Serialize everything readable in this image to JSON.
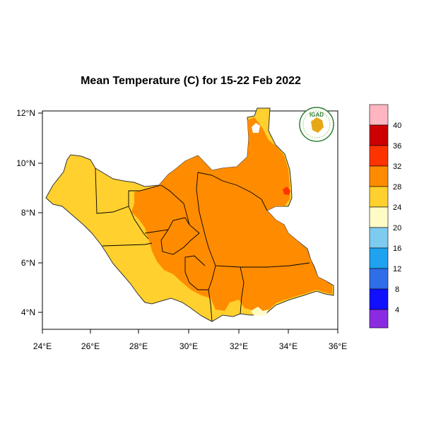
{
  "map": {
    "title": "Mean Temperature (C) for 15-22 Feb 2022",
    "region": "South Sudan",
    "logo_text": "IGAD",
    "x_ticks": [
      "24°E",
      "26°E",
      "28°E",
      "30°E",
      "32°E",
      "34°E",
      "36°E"
    ],
    "y_ticks": [
      "12°N",
      "10°N",
      "8°N",
      "6°N",
      "4°N"
    ],
    "lon_range": [
      24,
      36
    ],
    "lat_range": [
      3.5,
      12.5
    ],
    "colorbar": {
      "labels": [
        "40",
        "36",
        "32",
        "28",
        "24",
        "20",
        "16",
        "12",
        "8",
        "4"
      ],
      "colors_top_to_bottom": [
        "#ffb6c1",
        "#cc0000",
        "#ff3300",
        "#ff8c00",
        "#ffd02e",
        "#fffbc7",
        "#7ecbf0",
        "#1fa2f0",
        "#2f6ee8",
        "#1010ff",
        "#8a2be2"
      ]
    },
    "fill_colors": {
      "band_24_28": "#ffd02e",
      "band_28_32": "#ff8c00",
      "band_32_36": "#ff3300",
      "band_20_24": "#fffbc7",
      "border": "#000000"
    }
  }
}
